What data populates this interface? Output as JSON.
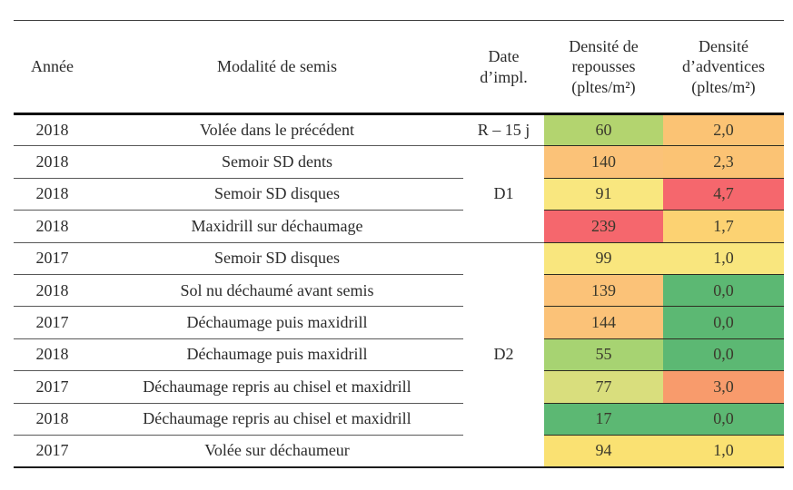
{
  "chart_data": {
    "type": "table",
    "columns": [
      "Année",
      "Modalité de semis",
      "Date d’impl.",
      "Densité de repousses (pltes/m²)",
      "Densité d’adventices (pltes/m²)"
    ],
    "rows": [
      {
        "annee": "2018",
        "modalite": "Volée dans le précédent",
        "date": "R – 15 j",
        "date_span": 1,
        "repousses": {
          "value": 60,
          "display": "60",
          "color": "#b3d46f"
        },
        "adventices": {
          "value": 2.0,
          "display": "2,0",
          "color": "#fbc374"
        }
      },
      {
        "annee": "2018",
        "modalite": "Semoir SD dents",
        "date": "D1",
        "date_span": 3,
        "repousses": {
          "value": 140,
          "display": "140",
          "color": "#fbc278"
        },
        "adventices": {
          "value": 2.3,
          "display": "2,3",
          "color": "#fbc374"
        }
      },
      {
        "annee": "2018",
        "modalite": "Semoir SD disques",
        "repousses": {
          "value": 91,
          "display": "91",
          "color": "#f9e77f"
        },
        "adventices": {
          "value": 4.7,
          "display": "4,7",
          "color": "#f5676d"
        }
      },
      {
        "annee": "2018",
        "modalite": "Maxidrill sur déchaumage",
        "repousses": {
          "value": 239,
          "display": "239",
          "color": "#f5676d"
        },
        "adventices": {
          "value": 1.7,
          "display": "1,7",
          "color": "#fcd272"
        }
      },
      {
        "annee": "2017",
        "modalite": "Semoir SD disques",
        "date": "D2",
        "date_span": 7,
        "repousses": {
          "value": 99,
          "display": "99",
          "color": "#f9e67e"
        },
        "adventices": {
          "value": 1.0,
          "display": "1,0",
          "color": "#f9e67e"
        }
      },
      {
        "annee": "2018",
        "modalite": "Sol nu déchaumé avant semis",
        "repousses": {
          "value": 139,
          "display": "139",
          "color": "#fbc278"
        },
        "adventices": {
          "value": 0.0,
          "display": "0,0",
          "color": "#5cb873"
        }
      },
      {
        "annee": "2017",
        "modalite": "Déchaumage puis maxidrill",
        "repousses": {
          "value": 144,
          "display": "144",
          "color": "#fbc278"
        },
        "adventices": {
          "value": 0.0,
          "display": "0,0",
          "color": "#5cb873"
        }
      },
      {
        "annee": "2018",
        "modalite": "Déchaumage puis maxidrill",
        "repousses": {
          "value": 55,
          "display": "55",
          "color": "#a7d372"
        },
        "adventices": {
          "value": 0.0,
          "display": "0,0",
          "color": "#5cb873"
        }
      },
      {
        "annee": "2017",
        "modalite": "Déchaumage repris au chisel et maxidrill",
        "repousses": {
          "value": 77,
          "display": "77",
          "color": "#d9de7d"
        },
        "adventices": {
          "value": 3.0,
          "display": "3,0",
          "color": "#f89b6c"
        }
      },
      {
        "annee": "2018",
        "modalite": "Déchaumage repris au chisel et maxidrill",
        "repousses": {
          "value": 17,
          "display": "17",
          "color": "#5cb873"
        },
        "adventices": {
          "value": 0.0,
          "display": "0,0",
          "color": "#5cb873"
        }
      },
      {
        "annee": "2017",
        "modalite": "Volée sur déchaumeur",
        "repousses": {
          "value": 94,
          "display": "94",
          "color": "#fae172"
        },
        "adventices": {
          "value": 1.0,
          "display": "1,0",
          "color": "#fae172"
        }
      }
    ]
  }
}
